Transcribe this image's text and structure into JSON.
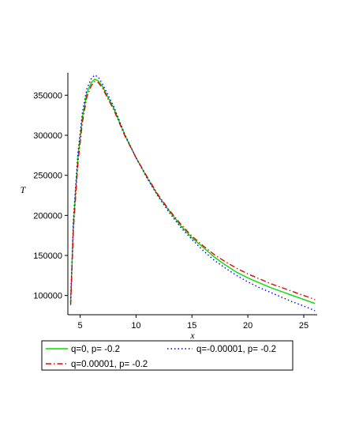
{
  "chart_data": {
    "type": "line",
    "xlabel": "x",
    "ylabel": "T",
    "xlim": [
      3.9,
      26.2
    ],
    "ylim": [
      76000,
      378000
    ],
    "xticks": [
      5,
      10,
      15,
      20,
      25
    ],
    "yticks": [
      100000,
      150000,
      200000,
      250000,
      300000,
      350000
    ],
    "grid": false,
    "legend_position": "bottom",
    "series": [
      {
        "name": "q=0, p= -0.2",
        "color": "#00dd00",
        "style": "solid",
        "x": [
          4.15,
          4.4,
          4.8,
          5.2,
          5.6,
          6.0,
          6.3,
          6.6,
          7.0,
          7.5,
          8.0,
          9.0,
          10.0,
          11.0,
          12.0,
          13.0,
          14.0,
          15.0,
          16.0,
          17.0,
          18.0,
          19.0,
          20.0,
          21.0,
          22.0,
          23.0,
          24.0,
          25.0,
          26.0
        ],
        "y": [
          90000,
          190000,
          272000,
          322000,
          353000,
          366000,
          370000,
          368000,
          361000,
          347000,
          334000,
          300000,
          272000,
          247000,
          224000,
          205000,
          187000,
          172000,
          160000,
          148000,
          138000,
          129000,
          122000,
          116000,
          110000,
          105000,
          100000,
          95000,
          90000
        ]
      },
      {
        "name": "q=-0.00001, p= -0.2",
        "color": "#0000ff",
        "style": "dotted",
        "x": [
          4.15,
          4.4,
          4.8,
          5.2,
          5.6,
          6.0,
          6.3,
          6.6,
          7.0,
          7.5,
          8.0,
          9.0,
          10.0,
          11.0,
          12.0,
          13.0,
          14.0,
          15.0,
          16.0,
          17.0,
          18.0,
          19.0,
          20.0,
          21.0,
          22.0,
          23.0,
          24.0,
          25.0,
          26.0
        ],
        "y": [
          92000,
          196000,
          278000,
          328000,
          358000,
          371000,
          375000,
          373000,
          364000,
          350000,
          336000,
          301000,
          272000,
          246000,
          223000,
          203000,
          185000,
          170000,
          156000,
          144000,
          134000,
          125000,
          117000,
          110000,
          104000,
          98000,
          92000,
          87000,
          81000
        ]
      },
      {
        "name": "q=0.00001, p= -0.2",
        "color": "#ee0000",
        "style": "dashdot",
        "x": [
          4.15,
          4.4,
          4.8,
          5.2,
          5.6,
          6.0,
          6.3,
          6.6,
          7.0,
          7.5,
          8.0,
          9.0,
          10.0,
          11.0,
          12.0,
          13.0,
          14.0,
          15.0,
          16.0,
          17.0,
          18.0,
          19.0,
          20.0,
          21.0,
          22.0,
          23.0,
          24.0,
          25.0,
          26.0
        ],
        "y": [
          88000,
          184000,
          266000,
          316000,
          348000,
          362000,
          367000,
          366000,
          359000,
          345000,
          332000,
          299000,
          272000,
          248000,
          225000,
          206000,
          189000,
          174000,
          162000,
          151000,
          142000,
          134000,
          127000,
          121000,
          115000,
          110000,
          105000,
          100000,
          95000
        ]
      }
    ],
    "legend": [
      {
        "label": "q=0, p= -0.2"
      },
      {
        "label": "q=-0.00001, p= -0.2"
      },
      {
        "label": "q=0.00001, p= -0.2"
      }
    ]
  }
}
